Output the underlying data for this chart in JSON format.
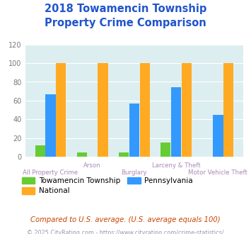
{
  "title": "2018 Towamencin Township\nProperty Crime Comparison",
  "categories": [
    "All Property Crime",
    "Arson",
    "Burglary",
    "Larceny & Theft",
    "Motor Vehicle Theft"
  ],
  "towamencin": [
    12,
    5,
    5,
    15,
    0
  ],
  "national": [
    100,
    100,
    100,
    100,
    100
  ],
  "pennsylvania": [
    67,
    0,
    57,
    74,
    45
  ],
  "colors": {
    "towamencin": "#66cc33",
    "national": "#ffaa22",
    "pennsylvania": "#3399ff"
  },
  "ylim": [
    0,
    120
  ],
  "yticks": [
    0,
    20,
    40,
    60,
    80,
    100,
    120
  ],
  "title_color": "#2255cc",
  "title_fontsize": 10.5,
  "axis_label_color": "#aa88bb",
  "footer_text": "Compared to U.S. average. (U.S. average equals 100)",
  "copyright_text": "© 2025 CityRating.com - https://www.cityrating.com/crime-statistics/",
  "footer_color": "#cc4400",
  "copyright_color": "#9999aa",
  "background_color": "#ddeef0",
  "fig_background": "#ffffff",
  "bar_order": [
    "towamencin",
    "pennsylvania",
    "national"
  ],
  "legend_order": [
    "towamencin",
    "national",
    "pennsylvania"
  ],
  "legend_labels": {
    "towamencin": "Towamencin Township",
    "national": "National",
    "pennsylvania": "Pennsylvania"
  }
}
